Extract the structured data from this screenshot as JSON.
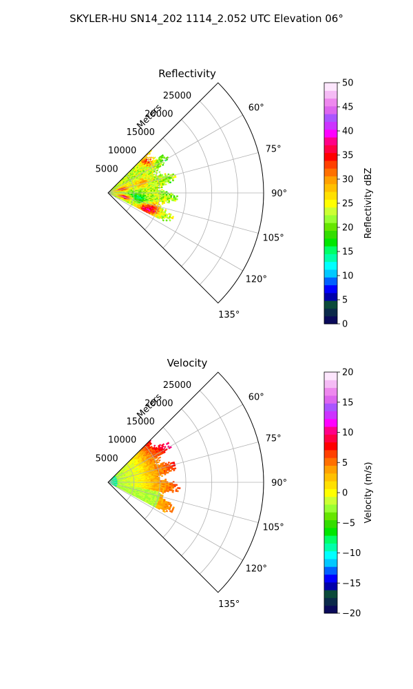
{
  "figure": {
    "suptitle": "SKYLER-HU  SN14_202  1114_2.052 UTC Elevation 06°"
  },
  "chart_data": [
    {
      "type": "heatmap",
      "projection": "polar-sector",
      "title": "Reflectivity",
      "radial_axis_label": "Meters",
      "radial_ticks": [
        5000,
        10000,
        15000,
        20000,
        25000
      ],
      "radial_tick_labels": [
        "5000",
        "10000",
        "15000",
        "20000",
        "25000"
      ],
      "angle_range_deg": [
        45,
        135
      ],
      "angle_ticks_deg": [
        60,
        75,
        90,
        105,
        120,
        135
      ],
      "angle_tick_labels": [
        "60°",
        "75°",
        "90°",
        "105°",
        "120°",
        "135°"
      ],
      "data_range_m": [
        0,
        13500
      ],
      "data_angle_range_deg": [
        45,
        117
      ],
      "grid": true,
      "colorbar": {
        "label": "Reflectivity dBZ",
        "range": [
          0,
          50
        ],
        "ticks": [
          0,
          5,
          10,
          15,
          20,
          25,
          30,
          35,
          40,
          45,
          50
        ],
        "tick_labels": [
          "0",
          "5",
          "10",
          "15",
          "20",
          "25",
          "30",
          "35",
          "40",
          "45",
          "50"
        ],
        "colors": [
          "#0a0a5a",
          "#0b2a4a",
          "#0b4a3a",
          "#0000aa",
          "#0000ff",
          "#0060ff",
          "#00c8ff",
          "#00ffff",
          "#00ffaa",
          "#00ff66",
          "#00e600",
          "#33dd00",
          "#66e600",
          "#99ff33",
          "#ccff33",
          "#ffff00",
          "#ffe000",
          "#ffc000",
          "#ffa000",
          "#ff7000",
          "#ff4000",
          "#ff0000",
          "#ff0044",
          "#ff0088",
          "#ff00ff",
          "#cc33ff",
          "#aa55ff",
          "#dd66ee",
          "#ee88ee",
          "#f5bbf5",
          "#fde6fd"
        ]
      },
      "field_mean_value": 23,
      "hotspots": [
        {
          "angle_deg": 50,
          "range_m": 9800,
          "value": 33
        },
        {
          "angle_deg": 75,
          "range_m": 2800,
          "value": 36
        },
        {
          "angle_deg": 104,
          "range_m": 3300,
          "value": 38
        },
        {
          "angle_deg": 113,
          "range_m": 7600,
          "value": 36
        },
        {
          "angle_deg": 110,
          "range_m": 9400,
          "value": 34
        },
        {
          "angle_deg": 73,
          "range_m": 6700,
          "value": 30
        }
      ],
      "lowspots": [
        {
          "angle_deg": 96,
          "range_m": 5200,
          "value": 17
        },
        {
          "angle_deg": 103,
          "range_m": 6600,
          "value": 18
        },
        {
          "angle_deg": 60,
          "range_m": 12800,
          "value": 19
        },
        {
          "angle_deg": 85,
          "range_m": 12300,
          "value": 19
        }
      ]
    },
    {
      "type": "heatmap",
      "projection": "polar-sector",
      "title": "Velocity",
      "radial_axis_label": "Meters",
      "radial_ticks": [
        5000,
        10000,
        15000,
        20000,
        25000
      ],
      "radial_tick_labels": [
        "5000",
        "10000",
        "15000",
        "20000",
        "25000"
      ],
      "angle_range_deg": [
        45,
        135
      ],
      "angle_ticks_deg": [
        60,
        75,
        90,
        105,
        120,
        135
      ],
      "angle_tick_labels": [
        "60°",
        "75°",
        "90°",
        "105°",
        "120°",
        "135°"
      ],
      "data_range_m": [
        0,
        14000
      ],
      "data_angle_range_deg": [
        45,
        118
      ],
      "grid": true,
      "colorbar": {
        "label": "Velocity (m/s)",
        "range": [
          -20,
          20
        ],
        "ticks": [
          -20,
          -15,
          -10,
          -5,
          0,
          5,
          10,
          15,
          20
        ],
        "tick_labels": [
          "−20",
          "−15",
          "−10",
          "−5",
          "0",
          "5",
          "10",
          "15",
          "20"
        ],
        "colors": [
          "#0a0a5a",
          "#0b2a4a",
          "#0b4a3a",
          "#0000aa",
          "#0000ff",
          "#0060ff",
          "#00c8ff",
          "#00ffff",
          "#00ffaa",
          "#00ff66",
          "#00e600",
          "#33dd00",
          "#66e600",
          "#99ff33",
          "#ccff33",
          "#ffff00",
          "#ffe000",
          "#ffc000",
          "#ffa000",
          "#ff7000",
          "#ff4000",
          "#ff0000",
          "#ff0044",
          "#ff0088",
          "#ff00ff",
          "#cc33ff",
          "#aa55ff",
          "#dd66ee",
          "#ee88ee",
          "#f5bbf5",
          "#fde6fd"
        ]
      },
      "velocity_structure": {
        "near_range_value": -10,
        "near_range_radius_m": 1800,
        "left_edge_value": -3,
        "center_value": 1,
        "far_right_value": 10,
        "top_far_value": 13
      }
    }
  ]
}
